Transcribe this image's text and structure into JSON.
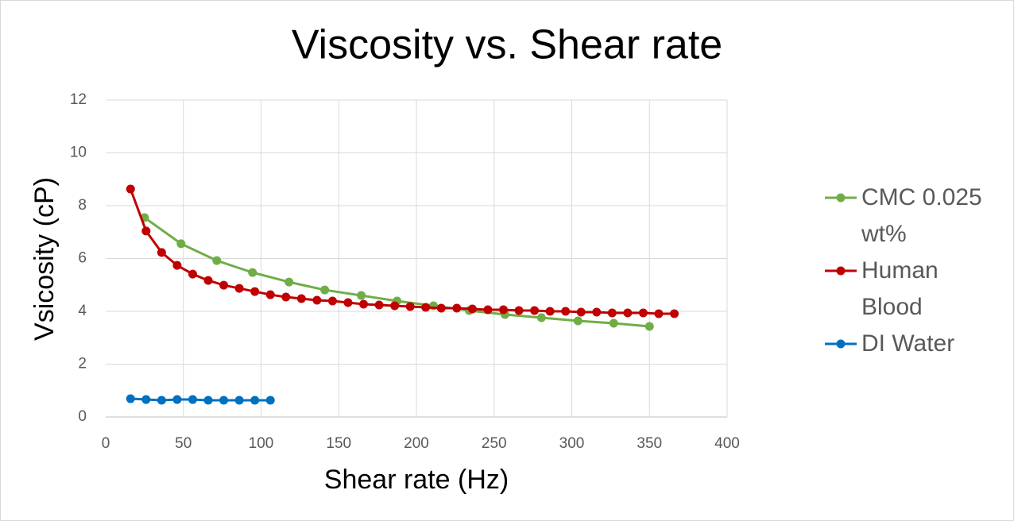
{
  "chart_data": {
    "type": "line",
    "title": "Viscosity vs. Shear rate",
    "x_label": "Shear rate (Hz)",
    "y_label": "Vsicosity (cP)",
    "xlim": [
      0,
      400
    ],
    "xticks": [
      0,
      50,
      100,
      150,
      200,
      250,
      300,
      350,
      400
    ],
    "ylim": [
      0,
      12
    ],
    "yticks": [
      0,
      2,
      4,
      6,
      8,
      10,
      12
    ],
    "grid": true,
    "legend": "right",
    "series": [
      {
        "name": "CMC 0.025 wt%",
        "color": "#70ad47",
        "x": [
          25,
          48.5,
          71.5,
          94.5,
          118,
          141,
          164.5,
          187.5,
          211,
          234,
          257,
          280.5,
          304,
          327,
          350
        ],
        "values": [
          7.55,
          6.56,
          5.92,
          5.47,
          5.11,
          4.81,
          4.6,
          4.39,
          4.21,
          4.03,
          3.88,
          3.76,
          3.64,
          3.55,
          3.43
        ]
      },
      {
        "name": "Human Blood",
        "color": "#c00000",
        "x": [
          16,
          26,
          36,
          46,
          56,
          66,
          76,
          86,
          96,
          106,
          116,
          126,
          136,
          146,
          156,
          166,
          176,
          186,
          196,
          206,
          216,
          226,
          236,
          246,
          256,
          266,
          276,
          286,
          296,
          306,
          316,
          326,
          336,
          346,
          356,
          366
        ],
        "values": [
          8.63,
          7.04,
          6.23,
          5.74,
          5.41,
          5.17,
          4.99,
          4.87,
          4.75,
          4.63,
          4.54,
          4.48,
          4.42,
          4.39,
          4.33,
          4.27,
          4.24,
          4.21,
          4.18,
          4.15,
          4.12,
          4.12,
          4.09,
          4.06,
          4.06,
          4.03,
          4.03,
          4.0,
          4.0,
          3.97,
          3.97,
          3.94,
          3.94,
          3.94,
          3.91,
          3.91
        ]
      },
      {
        "name": "DI Water",
        "color": "#0070c0",
        "x": [
          16,
          26,
          36,
          46,
          56,
          66,
          76,
          86,
          96,
          106
        ],
        "values": [
          0.69,
          0.66,
          0.63,
          0.66,
          0.66,
          0.63,
          0.63,
          0.63,
          0.63,
          0.63
        ]
      }
    ]
  }
}
